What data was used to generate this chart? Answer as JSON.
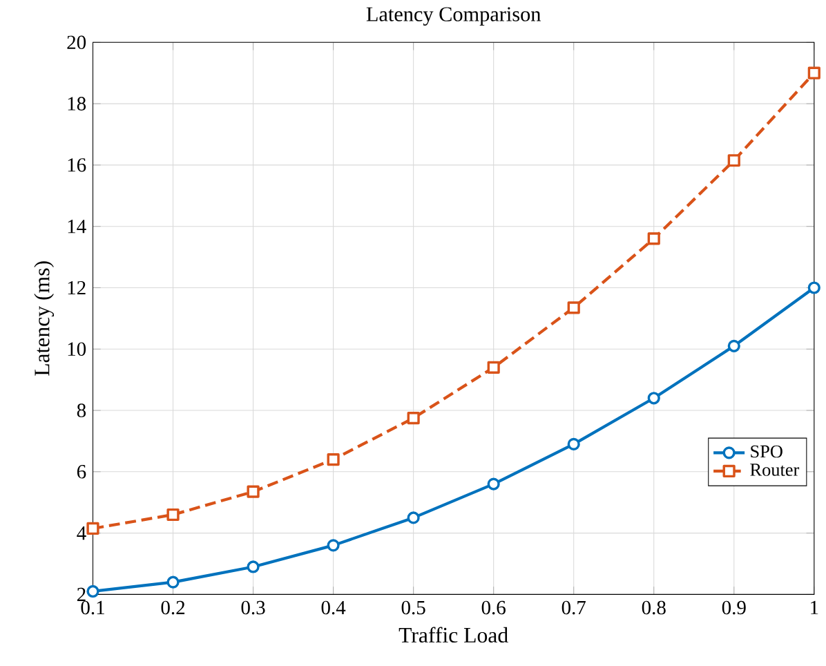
{
  "chart_data": {
    "type": "line",
    "title": "Latency Comparison",
    "xlabel": "Traffic Load",
    "ylabel": "Latency (ms)",
    "x": [
      0.1,
      0.2,
      0.3,
      0.4,
      0.5,
      0.6,
      0.7,
      0.8,
      0.9,
      1
    ],
    "series": [
      {
        "name": "SPO",
        "color": "#0072bd",
        "marker": "circle",
        "line_style": "solid",
        "values": [
          2.1,
          2.4,
          2.9,
          3.6,
          4.5,
          5.6,
          6.9,
          8.4,
          10.1,
          12.0
        ]
      },
      {
        "name": "Router",
        "color": "#d95319",
        "marker": "square",
        "line_style": "dashed",
        "values": [
          4.15,
          4.6,
          5.35,
          6.4,
          7.75,
          9.4,
          11.35,
          13.6,
          16.15,
          19.0
        ]
      }
    ],
    "xlim": [
      0.1,
      1
    ],
    "xticks": [
      0.1,
      0.2,
      0.3,
      0.4,
      0.5,
      0.6,
      0.7,
      0.8,
      0.9,
      1
    ],
    "ylim": [
      2,
      20
    ],
    "yticks": [
      2,
      4,
      6,
      8,
      10,
      12,
      14,
      16,
      18,
      20
    ],
    "grid": true,
    "legend": "right"
  }
}
